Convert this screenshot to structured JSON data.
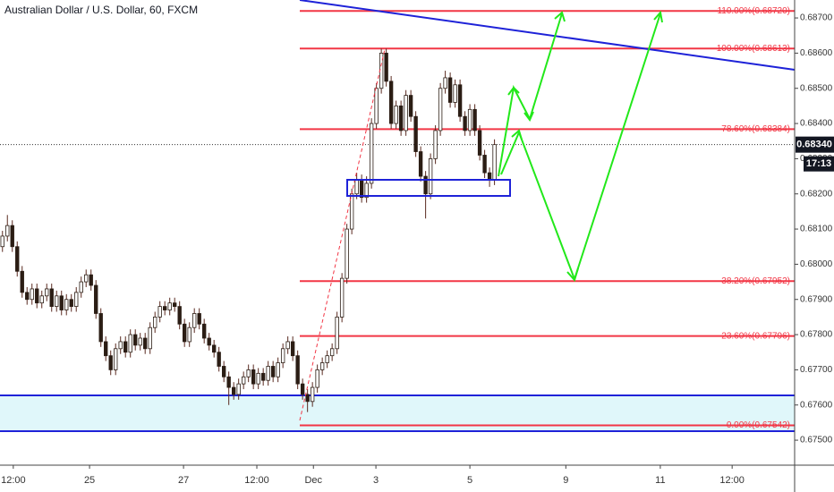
{
  "chart_data": {
    "type": "candlestick",
    "title": "Australian Dollar / U.S. Dollar, 60, FXCM",
    "x": [
      0,
      1,
      2,
      3,
      4,
      5,
      6,
      7,
      8,
      9,
      10,
      11,
      12,
      13,
      14,
      15,
      16,
      17,
      18,
      19,
      20,
      21,
      22,
      23,
      24,
      25,
      26,
      27,
      28,
      29,
      30,
      31,
      32,
      33,
      34,
      35,
      36,
      37,
      38,
      39,
      40,
      41,
      42,
      43,
      44,
      45,
      46,
      47,
      48,
      49,
      50,
      51,
      52,
      53,
      54,
      55,
      56,
      57,
      58,
      59,
      60,
      61,
      62,
      63,
      64,
      65,
      66,
      67,
      68,
      69,
      70,
      71,
      72,
      73,
      74,
      75,
      76,
      77,
      78,
      79,
      80,
      81,
      82,
      83,
      84,
      85,
      86,
      87,
      88,
      89,
      90,
      91,
      92,
      93,
      94,
      95,
      96,
      97,
      98,
      99,
      100
    ],
    "candles": [
      [
        0.6805,
        0.68095,
        0.68035,
        0.6808
      ],
      [
        0.6808,
        0.6814,
        0.68065,
        0.6811
      ],
      [
        0.6811,
        0.68125,
        0.68035,
        0.6805
      ],
      [
        0.6805,
        0.68065,
        0.67965,
        0.6798
      ],
      [
        0.6798,
        0.67995,
        0.67905,
        0.6792
      ],
      [
        0.6792,
        0.67935,
        0.67885,
        0.679
      ],
      [
        0.679,
        0.67945,
        0.67885,
        0.6793
      ],
      [
        0.6793,
        0.67945,
        0.67875,
        0.6789
      ],
      [
        0.6789,
        0.67925,
        0.67875,
        0.6791
      ],
      [
        0.6791,
        0.67945,
        0.67895,
        0.6793
      ],
      [
        0.6793,
        0.67945,
        0.67865,
        0.6788
      ],
      [
        0.6788,
        0.67925,
        0.67865,
        0.6791
      ],
      [
        0.6791,
        0.67925,
        0.67855,
        0.6787
      ],
      [
        0.6787,
        0.67915,
        0.67855,
        0.679
      ],
      [
        0.679,
        0.67915,
        0.67865,
        0.6788
      ],
      [
        0.6788,
        0.67935,
        0.67865,
        0.6792
      ],
      [
        0.6792,
        0.67965,
        0.67905,
        0.6795
      ],
      [
        0.6795,
        0.67985,
        0.67935,
        0.6797
      ],
      [
        0.6797,
        0.67985,
        0.67925,
        0.6794
      ],
      [
        0.6794,
        0.67955,
        0.67845,
        0.6786
      ],
      [
        0.6786,
        0.67875,
        0.67765,
        0.6778
      ],
      [
        0.6778,
        0.67795,
        0.67725,
        0.6774
      ],
      [
        0.6774,
        0.67755,
        0.67685,
        0.677
      ],
      [
        0.677,
        0.67775,
        0.67685,
        0.6776
      ],
      [
        0.6776,
        0.67795,
        0.67745,
        0.6778
      ],
      [
        0.6778,
        0.67795,
        0.67735,
        0.6775
      ],
      [
        0.6775,
        0.67815,
        0.67735,
        0.678
      ],
      [
        0.678,
        0.67815,
        0.67755,
        0.6777
      ],
      [
        0.6777,
        0.67805,
        0.67755,
        0.6779
      ],
      [
        0.6779,
        0.67805,
        0.67745,
        0.6776
      ],
      [
        0.6776,
        0.67835,
        0.67745,
        0.6782
      ],
      [
        0.6782,
        0.67865,
        0.67805,
        0.6785
      ],
      [
        0.6785,
        0.67895,
        0.67835,
        0.6788
      ],
      [
        0.6788,
        0.67895,
        0.67855,
        0.6787
      ],
      [
        0.6787,
        0.67905,
        0.67855,
        0.6789
      ],
      [
        0.6789,
        0.67905,
        0.67865,
        0.6788
      ],
      [
        0.6788,
        0.67895,
        0.67815,
        0.6783
      ],
      [
        0.6783,
        0.67845,
        0.67765,
        0.6778
      ],
      [
        0.6778,
        0.67835,
        0.67765,
        0.6782
      ],
      [
        0.6782,
        0.67875,
        0.67805,
        0.6786
      ],
      [
        0.6786,
        0.67875,
        0.67815,
        0.6783
      ],
      [
        0.6783,
        0.67845,
        0.67775,
        0.6779
      ],
      [
        0.6779,
        0.67805,
        0.67755,
        0.6777
      ],
      [
        0.6777,
        0.67785,
        0.67735,
        0.6775
      ],
      [
        0.6775,
        0.67765,
        0.67695,
        0.6771
      ],
      [
        0.6771,
        0.67725,
        0.67665,
        0.6768
      ],
      [
        0.6768,
        0.67695,
        0.676,
        0.6765
      ],
      [
        0.6765,
        0.67665,
        0.67615,
        0.6763
      ],
      [
        0.6763,
        0.67675,
        0.67615,
        0.6766
      ],
      [
        0.6766,
        0.67695,
        0.67645,
        0.6768
      ],
      [
        0.6768,
        0.67715,
        0.67665,
        0.677
      ],
      [
        0.677,
        0.67715,
        0.67645,
        0.6766
      ],
      [
        0.6766,
        0.67705,
        0.67645,
        0.6769
      ],
      [
        0.6769,
        0.67705,
        0.67655,
        0.6767
      ],
      [
        0.6767,
        0.67725,
        0.67655,
        0.6771
      ],
      [
        0.6771,
        0.67725,
        0.67665,
        0.6768
      ],
      [
        0.6768,
        0.67735,
        0.67665,
        0.6772
      ],
      [
        0.6772,
        0.67775,
        0.67705,
        0.6776
      ],
      [
        0.6776,
        0.67795,
        0.67745,
        0.6778
      ],
      [
        0.6778,
        0.67795,
        0.67725,
        0.6774
      ],
      [
        0.6774,
        0.67755,
        0.67645,
        0.6766
      ],
      [
        0.6766,
        0.67675,
        0.67615,
        0.6763
      ],
      [
        0.6763,
        0.67645,
        0.6758,
        0.6761
      ],
      [
        0.6761,
        0.67665,
        0.67595,
        0.6765
      ],
      [
        0.6765,
        0.67715,
        0.67635,
        0.677
      ],
      [
        0.677,
        0.67735,
        0.67685,
        0.6772
      ],
      [
        0.6772,
        0.67755,
        0.67705,
        0.6774
      ],
      [
        0.6774,
        0.67775,
        0.67725,
        0.6776
      ],
      [
        0.6776,
        0.67865,
        0.67745,
        0.6785
      ],
      [
        0.6785,
        0.67975,
        0.67835,
        0.6796
      ],
      [
        0.6796,
        0.68115,
        0.67945,
        0.681
      ],
      [
        0.681,
        0.68215,
        0.68085,
        0.682
      ],
      [
        0.682,
        0.6826,
        0.68185,
        0.6824
      ],
      [
        0.6824,
        0.68255,
        0.68175,
        0.6819
      ],
      [
        0.6819,
        0.6825,
        0.68175,
        0.6823
      ],
      [
        0.6823,
        0.68415,
        0.68215,
        0.684
      ],
      [
        0.684,
        0.68515,
        0.68385,
        0.685
      ],
      [
        0.685,
        0.68613,
        0.68485,
        0.686
      ],
      [
        0.686,
        0.68613,
        0.68505,
        0.6852
      ],
      [
        0.6852,
        0.68535,
        0.68385,
        0.684
      ],
      [
        0.684,
        0.68465,
        0.68385,
        0.6845
      ],
      [
        0.6845,
        0.68465,
        0.68365,
        0.6838
      ],
      [
        0.6838,
        0.68495,
        0.68365,
        0.6848
      ],
      [
        0.6848,
        0.68495,
        0.68405,
        0.6842
      ],
      [
        0.6842,
        0.68435,
        0.68305,
        0.6832
      ],
      [
        0.6832,
        0.68335,
        0.68235,
        0.6825
      ],
      [
        0.6825,
        0.68265,
        0.6813,
        0.682
      ],
      [
        0.682,
        0.68315,
        0.68185,
        0.683
      ],
      [
        0.683,
        0.68395,
        0.68285,
        0.6838
      ],
      [
        0.6838,
        0.68515,
        0.68365,
        0.685
      ],
      [
        0.685,
        0.6855,
        0.68485,
        0.6853
      ],
      [
        0.6853,
        0.68545,
        0.68445,
        0.6846
      ],
      [
        0.6846,
        0.68525,
        0.68445,
        0.6851
      ],
      [
        0.6851,
        0.68525,
        0.68405,
        0.6842
      ],
      [
        0.6842,
        0.68435,
        0.68365,
        0.6838
      ],
      [
        0.6838,
        0.68455,
        0.68365,
        0.6844
      ],
      [
        0.6844,
        0.68455,
        0.68365,
        0.6838
      ],
      [
        0.6838,
        0.68395,
        0.68295,
        0.6831
      ],
      [
        0.6831,
        0.68325,
        0.68245,
        0.6826
      ],
      [
        0.6826,
        0.68275,
        0.6822,
        0.6824
      ],
      [
        0.6824,
        0.68355,
        0.68225,
        0.6834
      ]
    ],
    "up_color": "#ffffff",
    "down_color": "#2b1d14",
    "wick_color": "#5a2a20",
    "xlim": [
      -0.5,
      161
    ],
    "ylim": [
      0.67429,
      0.68751
    ],
    "xticks": [
      {
        "value": 2.2,
        "label": "12:00"
      },
      {
        "value": 17.7,
        "label": "25"
      },
      {
        "value": 36.8,
        "label": "27"
      },
      {
        "value": 51.7,
        "label": "12:00"
      },
      {
        "value": 63.2,
        "label": "Dec"
      },
      {
        "value": 75.9,
        "label": "3"
      },
      {
        "value": 95.0,
        "label": "5"
      },
      {
        "value": 114.5,
        "label": "9"
      },
      {
        "value": 133.7,
        "label": "11"
      },
      {
        "value": 148.3,
        "label": "12:00"
      }
    ],
    "yticks": [
      {
        "value": 0.675,
        "label": "0.67500"
      },
      {
        "value": 0.676,
        "label": "0.67600"
      },
      {
        "value": 0.677,
        "label": "0.67700"
      },
      {
        "value": 0.678,
        "label": "0.67800"
      },
      {
        "value": 0.679,
        "label": "0.67900"
      },
      {
        "value": 0.68,
        "label": "0.68000"
      },
      {
        "value": 0.681,
        "label": "0.68100"
      },
      {
        "value": 0.682,
        "label": "0.68200"
      },
      {
        "value": 0.683,
        "label": "0.68300"
      },
      {
        "value": 0.684,
        "label": "0.68400"
      },
      {
        "value": 0.685,
        "label": "0.68500"
      },
      {
        "value": 0.686,
        "label": "0.68600"
      },
      {
        "value": 0.687,
        "label": "0.68700"
      }
    ],
    "fib_color": "#f23645",
    "fib_levels": [
      {
        "value": 0.6872,
        "label": "110.00%(0.68720)"
      },
      {
        "value": 0.68613,
        "label": "100.00%(0.68613)"
      },
      {
        "value": 0.68384,
        "label": "78.60%(0.68384)"
      },
      {
        "value": 0.67952,
        "label": "38.20%(0.67952)"
      },
      {
        "value": 0.67796,
        "label": "23.60%(0.67796)"
      },
      {
        "value": 0.67542,
        "label": "0.00%(0.67542)"
      }
    ],
    "last_price": {
      "value": 0.6834,
      "label": "0.68340"
    },
    "countdown": "17:13"
  }
}
